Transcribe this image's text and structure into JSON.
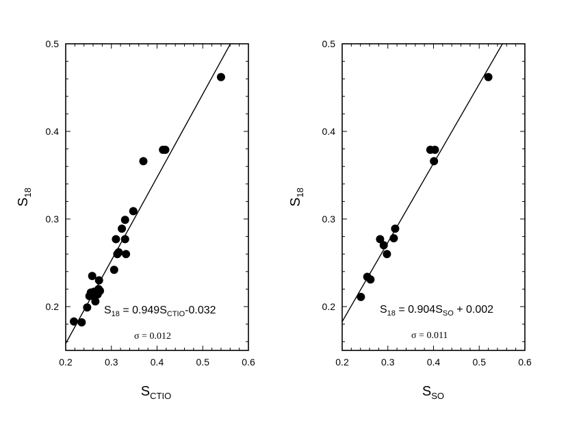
{
  "chart_data": [
    {
      "type": "scatter",
      "xlabel": "S",
      "xlabel_sub": "CTIO",
      "ylabel": "S",
      "ylabel_sub": "18",
      "xlim": [
        0.2,
        0.6
      ],
      "ylim": [
        0.15,
        0.5
      ],
      "x_ticks": [
        "0.2",
        "0.3",
        "0.4",
        "0.5",
        "0.6"
      ],
      "y_ticks": [
        "0.2",
        "0.3",
        "0.4",
        "0.5"
      ],
      "fit_line": {
        "slope": 0.949,
        "intercept": -0.032
      },
      "equation": {
        "a": "S",
        "a_sub": "18",
        "b": " = 0.949S",
        "b_sub": "CTIO",
        "c": "-0.032"
      },
      "sigma": "σ = 0.012",
      "points": [
        [
          0.218,
          0.183
        ],
        [
          0.235,
          0.182
        ],
        [
          0.247,
          0.199
        ],
        [
          0.252,
          0.212
        ],
        [
          0.255,
          0.216
        ],
        [
          0.258,
          0.235
        ],
        [
          0.26,
          0.213
        ],
        [
          0.262,
          0.217
        ],
        [
          0.265,
          0.206
        ],
        [
          0.27,
          0.214
        ],
        [
          0.272,
          0.22
        ],
        [
          0.273,
          0.23
        ],
        [
          0.275,
          0.218
        ],
        [
          0.306,
          0.242
        ],
        [
          0.31,
          0.277
        ],
        [
          0.313,
          0.26
        ],
        [
          0.316,
          0.262
        ],
        [
          0.323,
          0.289
        ],
        [
          0.33,
          0.277
        ],
        [
          0.33,
          0.299
        ],
        [
          0.332,
          0.26
        ],
        [
          0.348,
          0.309
        ],
        [
          0.37,
          0.366
        ],
        [
          0.413,
          0.379
        ],
        [
          0.418,
          0.379
        ],
        [
          0.54,
          0.462
        ]
      ]
    },
    {
      "type": "scatter",
      "xlabel": "S",
      "xlabel_sub": "SO",
      "ylabel": "S",
      "ylabel_sub": "18",
      "xlim": [
        0.2,
        0.6
      ],
      "ylim": [
        0.15,
        0.5
      ],
      "x_ticks": [
        "0.2",
        "0.3",
        "0.4",
        "0.5",
        "0.6"
      ],
      "y_ticks": [
        "0.2",
        "0.3",
        "0.4",
        "0.5"
      ],
      "fit_line": {
        "slope": 0.904,
        "intercept": 0.002
      },
      "equation": {
        "a": "S",
        "a_sub": "18",
        "b": " = 0.904S",
        "b_sub": "SO",
        "c": " + 0.002"
      },
      "sigma": "σ = 0.011",
      "points": [
        [
          0.241,
          0.211
        ],
        [
          0.255,
          0.234
        ],
        [
          0.262,
          0.231
        ],
        [
          0.283,
          0.277
        ],
        [
          0.291,
          0.27
        ],
        [
          0.298,
          0.26
        ],
        [
          0.313,
          0.278
        ],
        [
          0.316,
          0.289
        ],
        [
          0.393,
          0.379
        ],
        [
          0.403,
          0.379
        ],
        [
          0.401,
          0.366
        ],
        [
          0.52,
          0.462
        ]
      ]
    }
  ]
}
